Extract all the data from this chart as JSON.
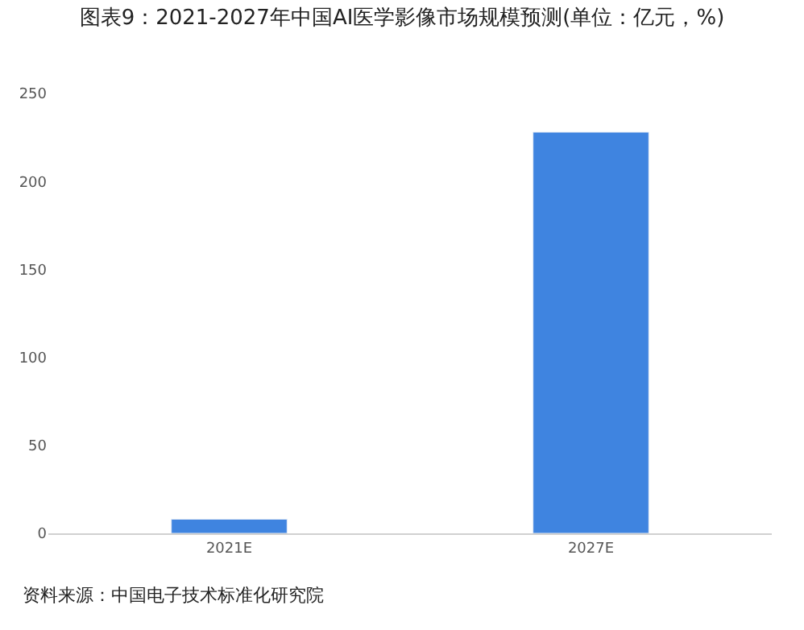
{
  "chart_data": {
    "type": "bar",
    "title": "图表9：2021-2027年中国AI医学影像市场规模预测(单位：亿元，%)",
    "categories": [
      "2021E",
      "2027E"
    ],
    "values": [
      8,
      228
    ],
    "color": "#3f84e0",
    "ylim": [
      0,
      250
    ],
    "yticks": [
      0,
      50,
      100,
      150,
      200,
      250
    ],
    "annotations": [
      "资料来源：中国电子技术标准化研究院"
    ]
  }
}
